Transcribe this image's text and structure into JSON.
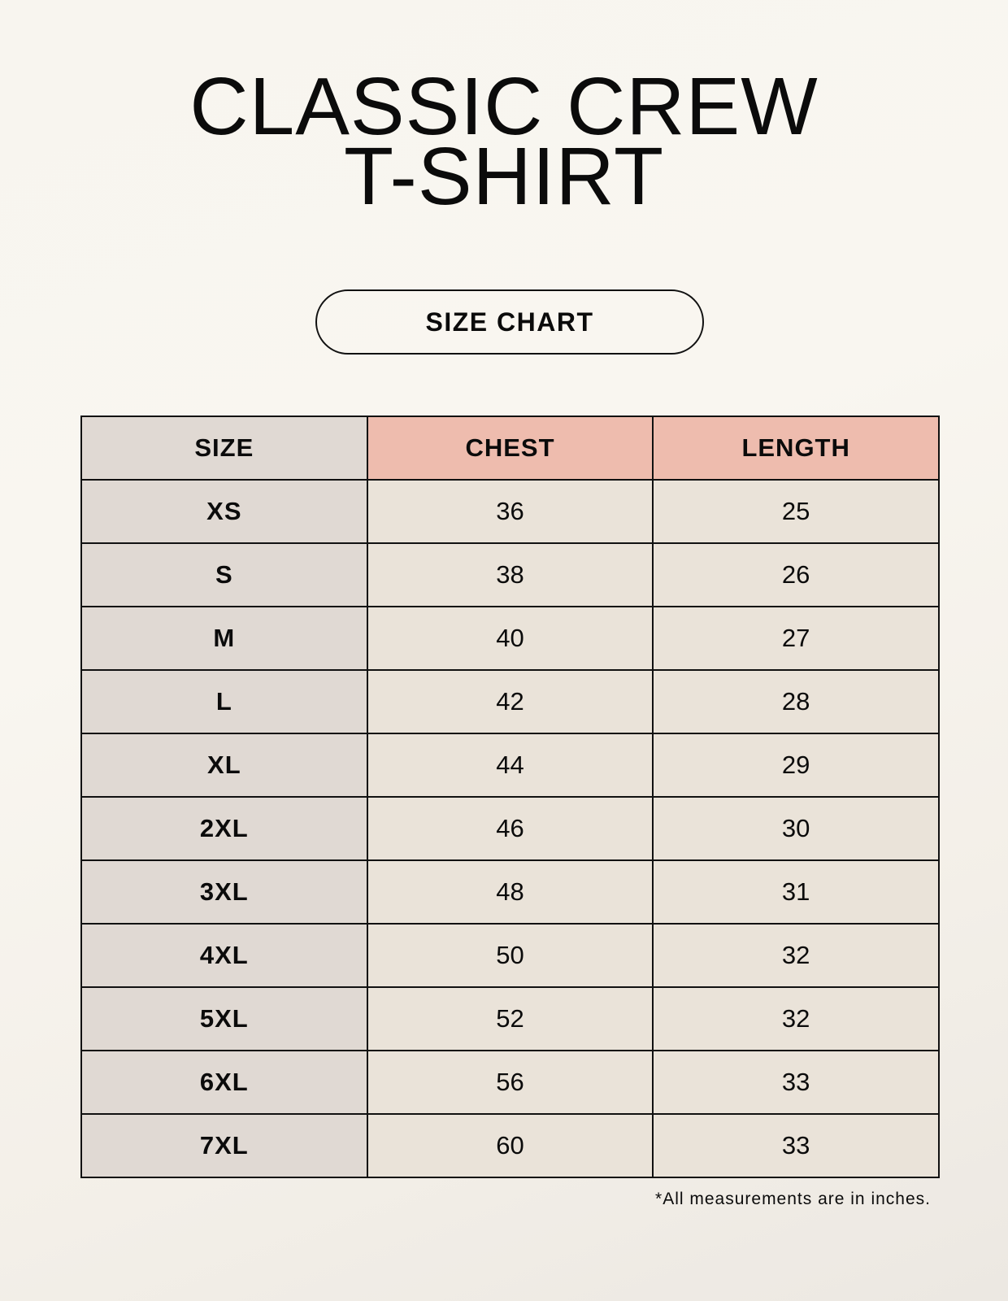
{
  "title": {
    "line1": "CLASSIC CREW",
    "line2": "T-SHIRT"
  },
  "badge": "SIZE CHART",
  "table": {
    "headers": [
      "SIZE",
      "CHEST",
      "LENGTH"
    ],
    "header_colors": {
      "size": "#e0d9d3",
      "measure": "#eebcae"
    },
    "rows": [
      [
        "XS",
        "36",
        "25"
      ],
      [
        "S",
        "38",
        "26"
      ],
      [
        "M",
        "40",
        "27"
      ],
      [
        "L",
        "42",
        "28"
      ],
      [
        "XL",
        "44",
        "29"
      ],
      [
        "2XL",
        "46",
        "30"
      ],
      [
        "3XL",
        "48",
        "31"
      ],
      [
        "4XL",
        "50",
        "32"
      ],
      [
        "5XL",
        "52",
        "32"
      ],
      [
        "6XL",
        "56",
        "33"
      ],
      [
        "7XL",
        "60",
        "33"
      ]
    ]
  },
  "footnote": "*All measurements are in inches."
}
